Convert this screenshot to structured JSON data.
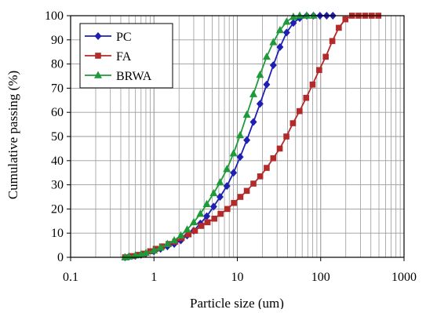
{
  "chart_data": {
    "type": "scatter",
    "x_scale": "log",
    "xlabel": "Particle size (um)",
    "ylabel": "Cumulative passing (%)",
    "xlim": [
      0.1,
      1000
    ],
    "ylim": [
      0,
      100
    ],
    "x_ticks": [
      "0.1",
      "1",
      "10",
      "100",
      "1000"
    ],
    "y_ticks": [
      "0",
      "10",
      "20",
      "30",
      "40",
      "50",
      "60",
      "70",
      "80",
      "90",
      "100"
    ],
    "grid": "vertical minor and major lines (log), horizontal at every 10",
    "legend_position": "top-left",
    "series": [
      {
        "name": "PC",
        "color": "#1f1fb4",
        "marker": "diamond",
        "points": [
          [
            0.45,
            0
          ],
          [
            0.5,
            0.3
          ],
          [
            0.6,
            0.6
          ],
          [
            0.7,
            1
          ],
          [
            0.8,
            1.5
          ],
          [
            1.0,
            2.5
          ],
          [
            1.2,
            3.5
          ],
          [
            1.45,
            4.5
          ],
          [
            1.75,
            5.5
          ],
          [
            2.1,
            7
          ],
          [
            2.5,
            9
          ],
          [
            3.0,
            11
          ],
          [
            3.6,
            14
          ],
          [
            4.3,
            17
          ],
          [
            5.2,
            21
          ],
          [
            6.2,
            25
          ],
          [
            7.5,
            29.5
          ],
          [
            9.0,
            35
          ],
          [
            10.8,
            41.5
          ],
          [
            13,
            48.5
          ],
          [
            15.6,
            56
          ],
          [
            18.7,
            63.5
          ],
          [
            22.5,
            71.5
          ],
          [
            27,
            79.5
          ],
          [
            32.5,
            87
          ],
          [
            39,
            93
          ],
          [
            47,
            97
          ],
          [
            56,
            99
          ],
          [
            68,
            100
          ],
          [
            82,
            100
          ],
          [
            98,
            100
          ],
          [
            118,
            100
          ],
          [
            140,
            100
          ]
        ]
      },
      {
        "name": "FA",
        "color": "#b22a2a",
        "marker": "square",
        "points": [
          [
            0.45,
            0
          ],
          [
            0.55,
            0.5
          ],
          [
            0.65,
            1
          ],
          [
            0.75,
            1.5
          ],
          [
            0.9,
            2.5
          ],
          [
            1.05,
            3.5
          ],
          [
            1.25,
            4.5
          ],
          [
            1.5,
            5.5
          ],
          [
            1.8,
            6.5
          ],
          [
            2.15,
            8
          ],
          [
            2.6,
            9.5
          ],
          [
            3.1,
            11
          ],
          [
            3.7,
            13
          ],
          [
            4.4,
            14.5
          ],
          [
            5.3,
            16
          ],
          [
            6.3,
            18
          ],
          [
            7.6,
            20
          ],
          [
            9.1,
            22.5
          ],
          [
            10.9,
            25
          ],
          [
            13,
            27.5
          ],
          [
            15.6,
            30.5
          ],
          [
            18.8,
            33.5
          ],
          [
            22.5,
            37
          ],
          [
            27,
            41
          ],
          [
            32.3,
            45
          ],
          [
            38.8,
            50
          ],
          [
            46.5,
            55.5
          ],
          [
            55.8,
            60.5
          ],
          [
            67,
            66
          ],
          [
            80,
            71.5
          ],
          [
            96,
            77.5
          ],
          [
            115,
            83
          ],
          [
            138,
            89.5
          ],
          [
            165,
            95
          ],
          [
            198,
            98.5
          ],
          [
            238,
            100
          ],
          [
            285,
            100
          ],
          [
            342,
            100
          ],
          [
            410,
            100
          ],
          [
            492,
            100
          ]
        ]
      },
      {
        "name": "BRWA",
        "color": "#1f9a3a",
        "marker": "triangle",
        "points": [
          [
            0.45,
            0
          ],
          [
            0.5,
            0.3
          ],
          [
            0.6,
            0.8
          ],
          [
            0.7,
            1.2
          ],
          [
            0.8,
            1.8
          ],
          [
            1.0,
            2.8
          ],
          [
            1.2,
            4
          ],
          [
            1.45,
            5.5
          ],
          [
            1.75,
            7
          ],
          [
            2.1,
            9
          ],
          [
            2.5,
            11.5
          ],
          [
            3.0,
            14.5
          ],
          [
            3.6,
            18
          ],
          [
            4.3,
            22
          ],
          [
            5.2,
            26.5
          ],
          [
            6.2,
            31
          ],
          [
            7.5,
            36.5
          ],
          [
            9.0,
            43
          ],
          [
            10.8,
            50.5
          ],
          [
            13,
            59
          ],
          [
            15.6,
            67.5
          ],
          [
            18.7,
            75.5
          ],
          [
            22.5,
            83
          ],
          [
            27,
            89
          ],
          [
            32.5,
            94
          ],
          [
            39,
            97.5
          ],
          [
            47,
            99.5
          ],
          [
            56,
            100
          ],
          [
            68,
            100
          ],
          [
            82,
            100
          ]
        ]
      }
    ]
  }
}
